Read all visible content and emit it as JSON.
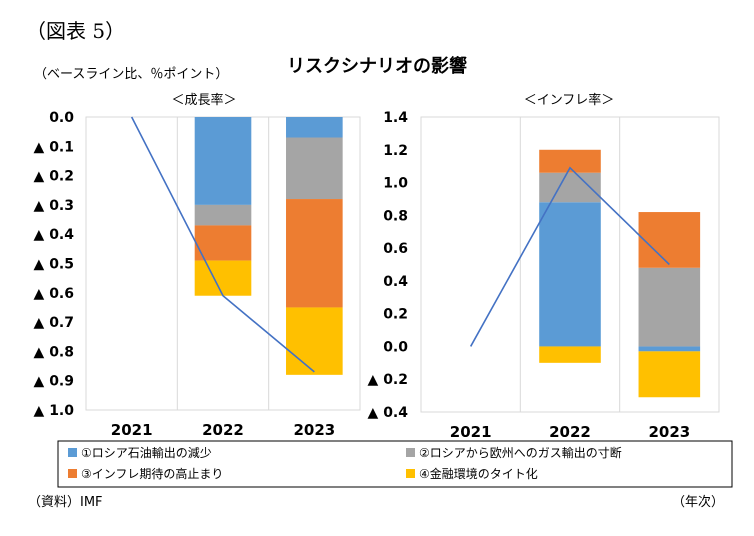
{
  "figure_label": "（図表 5）",
  "title": "リスクシナリオの影響",
  "unit_label": "（ベースライン比、％ポイント）",
  "source": "（資料）IMF",
  "x_unit": "（年次）",
  "colors": {
    "s1": "#5b9bd5",
    "s2": "#a5a5a5",
    "s3": "#ed7d31",
    "s4": "#ffc000",
    "line": "#4472c4",
    "grid": "#d9d9d9"
  },
  "legend": [
    {
      "label": "①ロシア石油輸出の減少",
      "color": "#5b9bd5"
    },
    {
      "label": "②ロシアから欧州へのガス輸出の寸断",
      "color": "#a5a5a5"
    },
    {
      "label": "③インフレ期待の高止まり",
      "color": "#ed7d31"
    },
    {
      "label": "④金融環境のタイト化",
      "color": "#ffc000"
    }
  ],
  "chart_data": [
    {
      "type": "bar",
      "stacked": true,
      "title": "＜成長率＞",
      "categories": [
        "2021",
        "2022",
        "2023"
      ],
      "ylim": [
        -1.0,
        0.0
      ],
      "yticks": [
        {
          "v": 0.0,
          "label": "0.0"
        },
        {
          "v": -0.1,
          "label": "▲ 0.1"
        },
        {
          "v": -0.2,
          "label": "▲ 0.2"
        },
        {
          "v": -0.3,
          "label": "▲ 0.3"
        },
        {
          "v": -0.4,
          "label": "▲ 0.4"
        },
        {
          "v": -0.5,
          "label": "▲ 0.5"
        },
        {
          "v": -0.6,
          "label": "▲ 0.6"
        },
        {
          "v": -0.7,
          "label": "▲ 0.7"
        },
        {
          "v": -0.8,
          "label": "▲ 0.8"
        },
        {
          "v": -0.9,
          "label": "▲ 0.9"
        },
        {
          "v": -1.0,
          "label": "▲ 1.0"
        }
      ],
      "series": [
        {
          "name": "①ロシア石油輸出の減少",
          "values": [
            0,
            -0.3,
            -0.07
          ]
        },
        {
          "name": "②ロシアから欧州へのガス輸出の寸断",
          "values": [
            0,
            -0.07,
            -0.21
          ]
        },
        {
          "name": "③インフレ期待の高止まり",
          "values": [
            0,
            -0.12,
            -0.37
          ]
        },
        {
          "name": "④金融環境のタイト化",
          "values": [
            0,
            -0.12,
            -0.23
          ]
        }
      ],
      "line": [
        0.0,
        -0.61,
        -0.87
      ]
    },
    {
      "type": "bar",
      "stacked": true,
      "title": "＜インフレ率＞",
      "categories": [
        "2021",
        "2022",
        "2023"
      ],
      "ylim": [
        -0.4,
        1.4
      ],
      "yticks": [
        {
          "v": 1.4,
          "label": "1.4"
        },
        {
          "v": 1.2,
          "label": "1.2"
        },
        {
          "v": 1.0,
          "label": "1.0"
        },
        {
          "v": 0.8,
          "label": "0.8"
        },
        {
          "v": 0.6,
          "label": "0.6"
        },
        {
          "v": 0.4,
          "label": "0.4"
        },
        {
          "v": 0.2,
          "label": "0.2"
        },
        {
          "v": 0.0,
          "label": "0.0"
        },
        {
          "v": -0.2,
          "label": "▲ 0.2"
        },
        {
          "v": -0.4,
          "label": "▲ 0.4"
        }
      ],
      "series": [
        {
          "name": "①ロシア石油輸出の減少",
          "values": [
            0,
            0.88,
            -0.03
          ]
        },
        {
          "name": "②ロシアから欧州へのガス輸出の寸断",
          "values": [
            0,
            0.18,
            0.48
          ]
        },
        {
          "name": "③インフレ期待の高止まり",
          "values": [
            0,
            0.14,
            0.34
          ]
        },
        {
          "name": "④金融環境のタイト化",
          "values": [
            0,
            -0.1,
            -0.28
          ]
        }
      ],
      "line": [
        0.0,
        1.09,
        0.5
      ]
    }
  ]
}
